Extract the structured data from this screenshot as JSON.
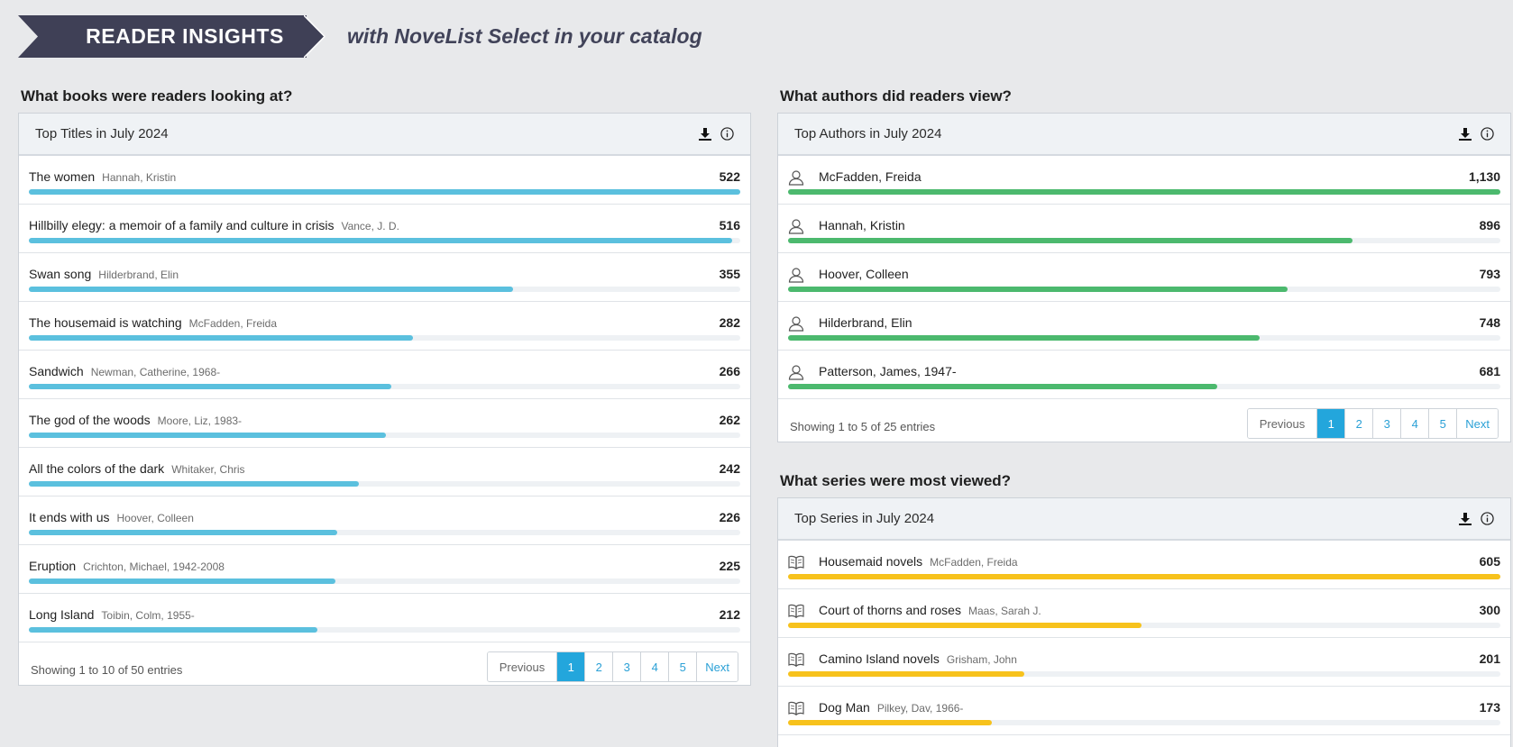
{
  "banner": {
    "title": "READER INSIGHTS",
    "tagline": "with NoveList Select in your catalog"
  },
  "colors": {
    "titles_bar": "#5bc0de",
    "authors_bar": "#4cb96e",
    "series_bar": "#f7c21c",
    "active_page": "#23a6dc"
  },
  "titles": {
    "question": "What books were readers looking at?",
    "panel_title": "Top Titles in July 2024",
    "icons": [
      "download-icon",
      "info-icon"
    ],
    "rows": [
      {
        "name": "The women",
        "author": "Hannah, Kristin",
        "value": "522",
        "count": 522
      },
      {
        "name": "Hillbilly elegy: a memoir of a family and culture in crisis",
        "author": "Vance, J. D.",
        "value": "516",
        "count": 516
      },
      {
        "name": "Swan song",
        "author": "Hilderbrand, Elin",
        "value": "355",
        "count": 355
      },
      {
        "name": "The housemaid is watching",
        "author": "McFadden, Freida",
        "value": "282",
        "count": 282
      },
      {
        "name": "Sandwich",
        "author": "Newman, Catherine, 1968-",
        "value": "266",
        "count": 266
      },
      {
        "name": "The god of the woods",
        "author": "Moore, Liz, 1983-",
        "value": "262",
        "count": 262
      },
      {
        "name": "All the colors of the dark",
        "author": "Whitaker, Chris",
        "value": "242",
        "count": 242
      },
      {
        "name": "It ends with us",
        "author": "Hoover, Colleen",
        "value": "226",
        "count": 226
      },
      {
        "name": "Eruption",
        "author": "Crichton, Michael, 1942-2008",
        "value": "225",
        "count": 225
      },
      {
        "name": "Long Island",
        "author": "Toibin, Colm, 1955-",
        "value": "212",
        "count": 212
      }
    ],
    "showing": "Showing 1 to 10 of 50 entries",
    "pager": {
      "prev": "Previous",
      "pages": [
        "1",
        "2",
        "3",
        "4",
        "5"
      ],
      "active": "1",
      "next": "Next"
    }
  },
  "authors": {
    "question": "What authors did readers view?",
    "panel_title": "Top Authors in July 2024",
    "row_icon": "person-icon",
    "rows": [
      {
        "name": "McFadden, Freida",
        "value": "1,130",
        "count": 1130
      },
      {
        "name": "Hannah, Kristin",
        "value": "896",
        "count": 896
      },
      {
        "name": "Hoover, Colleen",
        "value": "793",
        "count": 793
      },
      {
        "name": "Hilderbrand, Elin",
        "value": "748",
        "count": 748
      },
      {
        "name": "Patterson, James, 1947-",
        "value": "681",
        "count": 681
      }
    ],
    "showing": "Showing 1 to 5 of 25 entries",
    "pager": {
      "prev": "Previous",
      "pages": [
        "1",
        "2",
        "3",
        "4",
        "5"
      ],
      "active": "1",
      "next": "Next"
    }
  },
  "series": {
    "question": "What series were most viewed?",
    "panel_title": "Top Series in July 2024",
    "row_icon": "book-icon",
    "rows": [
      {
        "name": "Housemaid novels",
        "author": "McFadden, Freida",
        "value": "605",
        "count": 605
      },
      {
        "name": "Court of thorns and roses",
        "author": "Maas, Sarah J.",
        "value": "300",
        "count": 300
      },
      {
        "name": "Camino Island novels",
        "author": "Grisham, John",
        "value": "201",
        "count": 201
      },
      {
        "name": "Dog Man",
        "author": "Pilkey, Dav, 1966-",
        "value": "173",
        "count": 173
      }
    ]
  }
}
